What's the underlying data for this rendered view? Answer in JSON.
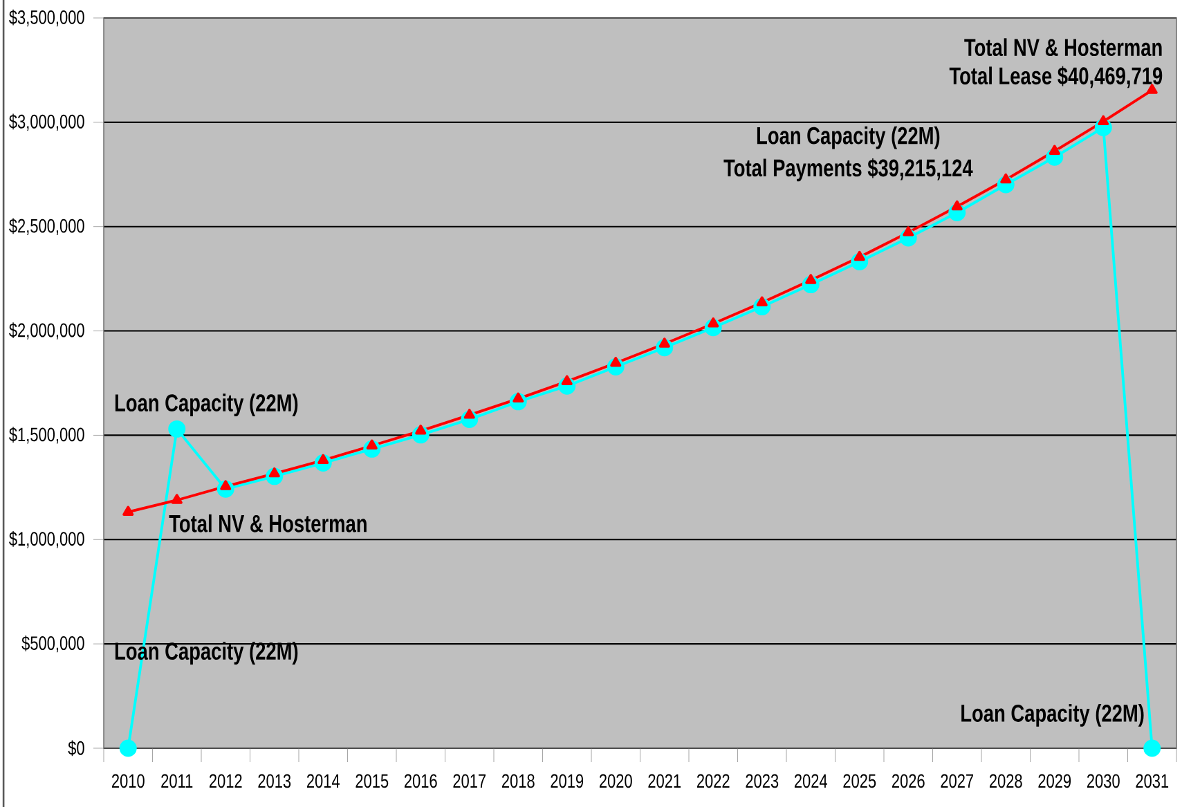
{
  "chart_data": {
    "type": "line",
    "categories": [
      "2010",
      "2011",
      "2012",
      "2013",
      "2014",
      "2015",
      "2016",
      "2017",
      "2018",
      "2019",
      "2020",
      "2021",
      "2022",
      "2023",
      "2024",
      "2025",
      "2026",
      "2027",
      "2028",
      "2029",
      "2030",
      "2031"
    ],
    "series": [
      {
        "color": "#ff0000",
        "marker": "triangle",
        "values": [
          1132000,
          1189000,
          1255000,
          1316000,
          1380000,
          1450000,
          1521000,
          1597000,
          1675000,
          1758000,
          1846000,
          1938000,
          2035000,
          2136000,
          2243000,
          2354000,
          2472000,
          2596000,
          2725000,
          2862000,
          3004000,
          3154000
        ]
      },
      {
        "color": "#00ffff",
        "marker": "circle",
        "values": [
          0,
          1530000,
          1242000,
          1303000,
          1367000,
          1434000,
          1502000,
          1576000,
          1661000,
          1736000,
          1828000,
          1920000,
          2016000,
          2116000,
          2222000,
          2332000,
          2446000,
          2567000,
          2701000,
          2833000,
          2975000,
          0
        ]
      }
    ],
    "ylim": [
      0,
      3500000
    ],
    "yticks": [
      {
        "value": 0,
        "label": "$0"
      },
      {
        "value": 500000,
        "label": "$500,000"
      },
      {
        "value": 1000000,
        "label": "$1,000,000"
      },
      {
        "value": 1500000,
        "label": "$1,500,000"
      },
      {
        "value": 2000000,
        "label": "$2,000,000"
      },
      {
        "value": 2500000,
        "label": "$2,500,000"
      },
      {
        "value": 3000000,
        "label": "$3,000,000"
      },
      {
        "value": 3500000,
        "label": "$3,500,000"
      }
    ],
    "grid": "y",
    "legend": false,
    "line_style": "solid",
    "annotations": [
      "Loan Capacity (22M)",
      "Total NV & Hosterman",
      "Loan Capacity (22M)",
      "Loan Capacity (22M)",
      "Total Payments $39,215,124",
      "Total NV & Hosterman",
      "Total Lease $40,469,719",
      "Loan Capacity (22M)"
    ]
  }
}
